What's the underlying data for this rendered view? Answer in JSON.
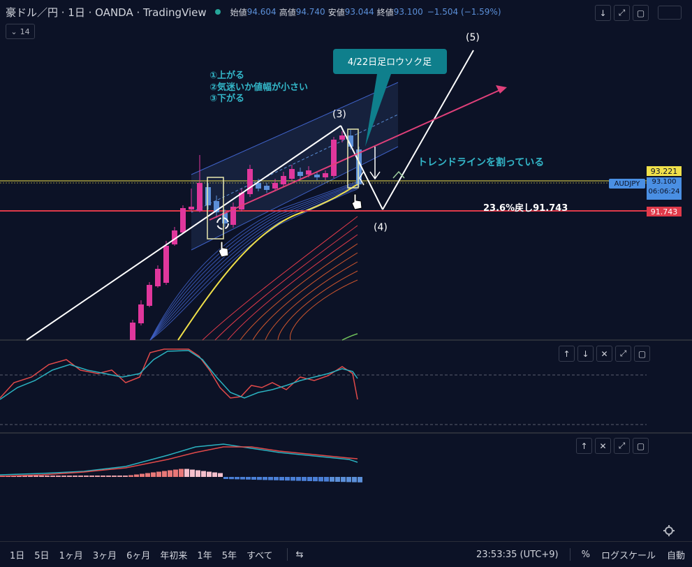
{
  "header": {
    "symbol": "豪ドル／円 · 1日 · OANDA · TradingView",
    "open_label": "始値",
    "open": "94.604",
    "high_label": "高値",
    "high": "94.740",
    "low_label": "安値",
    "low": "93.044",
    "close_label": "終値",
    "close": "93.100",
    "change": "−1.504 (−1.59%)"
  },
  "indicator_chip": {
    "value": "14"
  },
  "toolbar_icons": [
    "down-arrow-icon",
    "fullscreen-icon",
    "restore-icon"
  ],
  "annotations": {
    "callout": "4/22日足ロウソク足",
    "list_1": "①上がる",
    "list_2": "②気迷いか値幅が小さい",
    "list_3": "③下がる",
    "trendline_note": "トレンドラインを割っている",
    "fib_note": "23.6%戻し91.743",
    "wave3": "(3)",
    "wave4": "(4)",
    "wave5": "(5)"
  },
  "price_scale": {
    "yellow_level": "93.221",
    "symbol_tag": "AUDJPY",
    "current_price": "93.100",
    "countdown": "06:06:24",
    "red_level": "91.743"
  },
  "bottom_bar": {
    "timeframes": [
      "1日",
      "5日",
      "1ヶ月",
      "3ヶ月",
      "6ヶ月",
      "年初来",
      "1年",
      "5年",
      "すべて"
    ],
    "time": "23:53:35 (UTC+9)",
    "percent": "%",
    "log": "ログスケール",
    "auto": "自動"
  },
  "colors": {
    "background": "#0c1226",
    "bull_candle": "#e0379c",
    "bear_candle": "#5b8fd8",
    "yellow_line": "#f0e04a",
    "red_line": "#e03a4a",
    "annotation_cyan": "#33b6c8"
  }
}
